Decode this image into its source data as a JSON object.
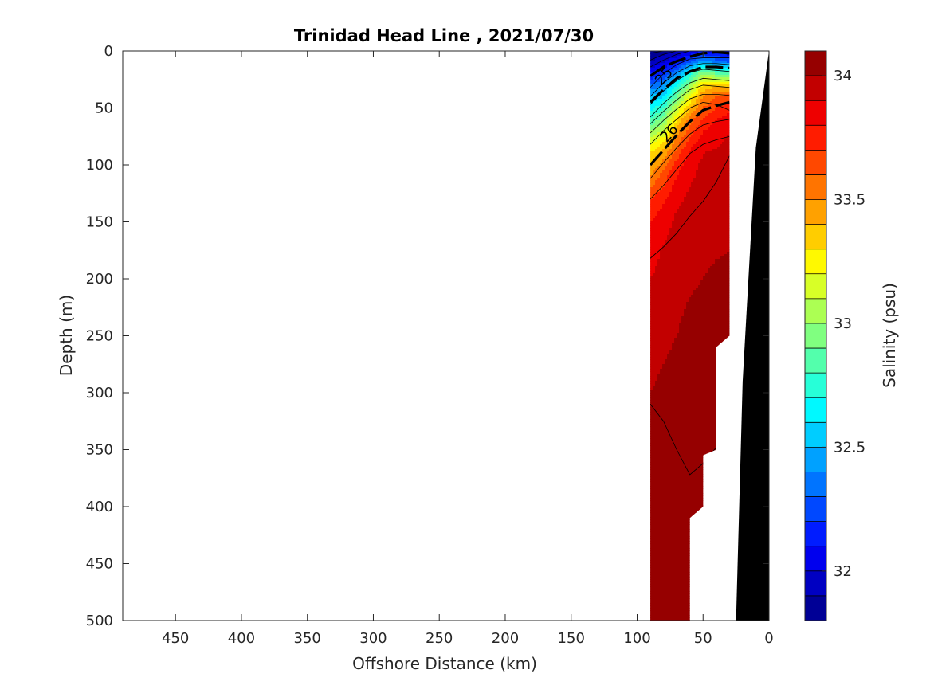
{
  "chart_data": {
    "type": "heatmap",
    "title": "Trinidad Head Line , 2021/07/30",
    "xlabel": "Offshore Distance (km)",
    "ylabel": "Depth (m)",
    "colorbar_label": "Salinity (psu)",
    "xlim": [
      490,
      0
    ],
    "ylim": [
      0,
      500
    ],
    "x_reversed": true,
    "y_reversed": true,
    "x_ticks": [
      450,
      400,
      350,
      300,
      250,
      200,
      150,
      100,
      50,
      0
    ],
    "y_ticks": [
      0,
      50,
      100,
      150,
      200,
      250,
      300,
      350,
      400,
      450,
      500
    ],
    "clim": [
      31.8,
      34.1
    ],
    "colorbar_ticks": [
      32,
      32.5,
      33,
      33.5,
      34
    ],
    "colormap": "jet",
    "color_levels": 23,
    "density_contour_labels": [
      {
        "text": "25",
        "x": 77,
        "y": 25
      },
      {
        "text": "26",
        "x": 73,
        "y": 75
      }
    ],
    "salinity_grid": {
      "x_km": [
        90,
        80,
        70,
        60,
        50,
        40,
        30
      ],
      "depth_m": [
        0,
        10,
        20,
        30,
        40,
        50,
        60,
        70,
        80,
        90,
        100,
        110,
        120,
        130,
        140,
        150,
        175,
        200,
        225,
        250,
        275,
        300,
        325,
        350,
        375,
        400,
        425,
        450,
        475,
        500
      ],
      "values": [
        [
          31.8,
          31.85,
          31.9,
          32.0,
          32.1,
          32.0,
          32.0
        ],
        [
          31.9,
          32.0,
          32.1,
          32.3,
          32.5,
          32.4,
          32.3
        ],
        [
          32.1,
          32.2,
          32.4,
          32.7,
          33.0,
          32.9,
          32.9
        ],
        [
          32.3,
          32.4,
          32.7,
          33.0,
          33.3,
          33.35,
          33.35
        ],
        [
          32.5,
          32.6,
          32.9,
          33.2,
          33.5,
          33.6,
          33.65
        ],
        [
          32.65,
          32.8,
          33.1,
          33.4,
          33.6,
          33.7,
          33.75
        ],
        [
          32.8,
          32.95,
          33.3,
          33.55,
          33.7,
          33.8,
          33.85
        ],
        [
          33.0,
          33.1,
          33.45,
          33.65,
          33.8,
          33.85,
          33.9
        ],
        [
          33.15,
          33.3,
          33.55,
          33.75,
          33.85,
          33.88,
          33.92
        ],
        [
          33.3,
          33.45,
          33.65,
          33.82,
          33.9,
          33.92,
          33.95
        ],
        [
          33.4,
          33.55,
          33.75,
          33.86,
          33.92,
          33.95,
          33.97
        ],
        [
          33.5,
          33.65,
          33.8,
          33.88,
          33.93,
          33.96,
          33.97
        ],
        [
          33.6,
          33.7,
          33.85,
          33.9,
          33.94,
          33.96,
          33.98
        ],
        [
          33.7,
          33.78,
          33.88,
          33.92,
          33.95,
          33.97,
          33.98
        ],
        [
          33.75,
          33.82,
          33.9,
          33.93,
          33.96,
          33.97,
          33.99
        ],
        [
          33.8,
          33.86,
          33.92,
          33.94,
          33.97,
          33.98,
          33.99
        ],
        [
          33.86,
          33.91,
          33.94,
          33.96,
          33.98,
          33.99,
          34.0
        ],
        [
          33.9,
          33.93,
          33.96,
          33.98,
          34.0,
          34.02,
          34.02
        ],
        [
          33.93,
          33.96,
          33.98,
          34.01,
          34.03,
          34.04,
          34.04
        ],
        [
          33.96,
          33.98,
          34.0,
          34.03,
          34.05,
          34.05,
          34.05
        ],
        [
          33.98,
          34.0,
          34.02,
          34.04,
          34.06,
          34.06,
          34.06
        ],
        [
          34.0,
          34.02,
          34.04,
          34.05,
          34.07,
          34.07,
          34.06
        ],
        [
          34.02,
          34.04,
          34.05,
          34.06,
          34.07,
          34.07,
          34.06
        ],
        [
          34.03,
          34.04,
          34.05,
          34.06,
          34.07,
          34.07,
          34.06
        ],
        [
          34.03,
          34.04,
          34.05,
          34.06,
          34.06,
          34.06,
          34.06
        ],
        [
          34.04,
          34.04,
          34.05,
          34.05,
          34.05,
          34.05,
          34.05
        ],
        [
          34.04,
          34.05,
          34.05,
          34.05,
          34.05,
          34.05,
          34.05
        ],
        [
          34.05,
          34.06,
          34.06,
          34.06,
          34.06,
          34.06,
          34.06
        ],
        [
          34.06,
          34.07,
          34.07,
          34.07,
          34.07,
          34.07,
          34.07
        ],
        [
          34.07,
          34.08,
          34.08,
          34.08,
          34.08,
          34.08,
          34.08
        ]
      ]
    },
    "data_bottom_boundary": [
      {
        "x": 90,
        "depth": 500
      },
      {
        "x": 60,
        "depth": 500
      },
      {
        "x": 60,
        "depth": 410
      },
      {
        "x": 50,
        "depth": 400
      },
      {
        "x": 50,
        "depth": 355
      },
      {
        "x": 40,
        "depth": 350
      },
      {
        "x": 40,
        "depth": 260
      },
      {
        "x": 30,
        "depth": 250
      },
      {
        "x": 30,
        "depth": 0
      }
    ],
    "bathymetry": [
      {
        "x": 0,
        "depth": 0
      },
      {
        "x": 10,
        "depth": 85
      },
      {
        "x": 20,
        "depth": 290
      },
      {
        "x": 25,
        "depth": 500
      },
      {
        "x": 0,
        "depth": 500
      }
    ],
    "grid": false
  },
  "colors": {
    "bathymetry": "#000000",
    "axis": "#262626",
    "contour": "#000000"
  }
}
